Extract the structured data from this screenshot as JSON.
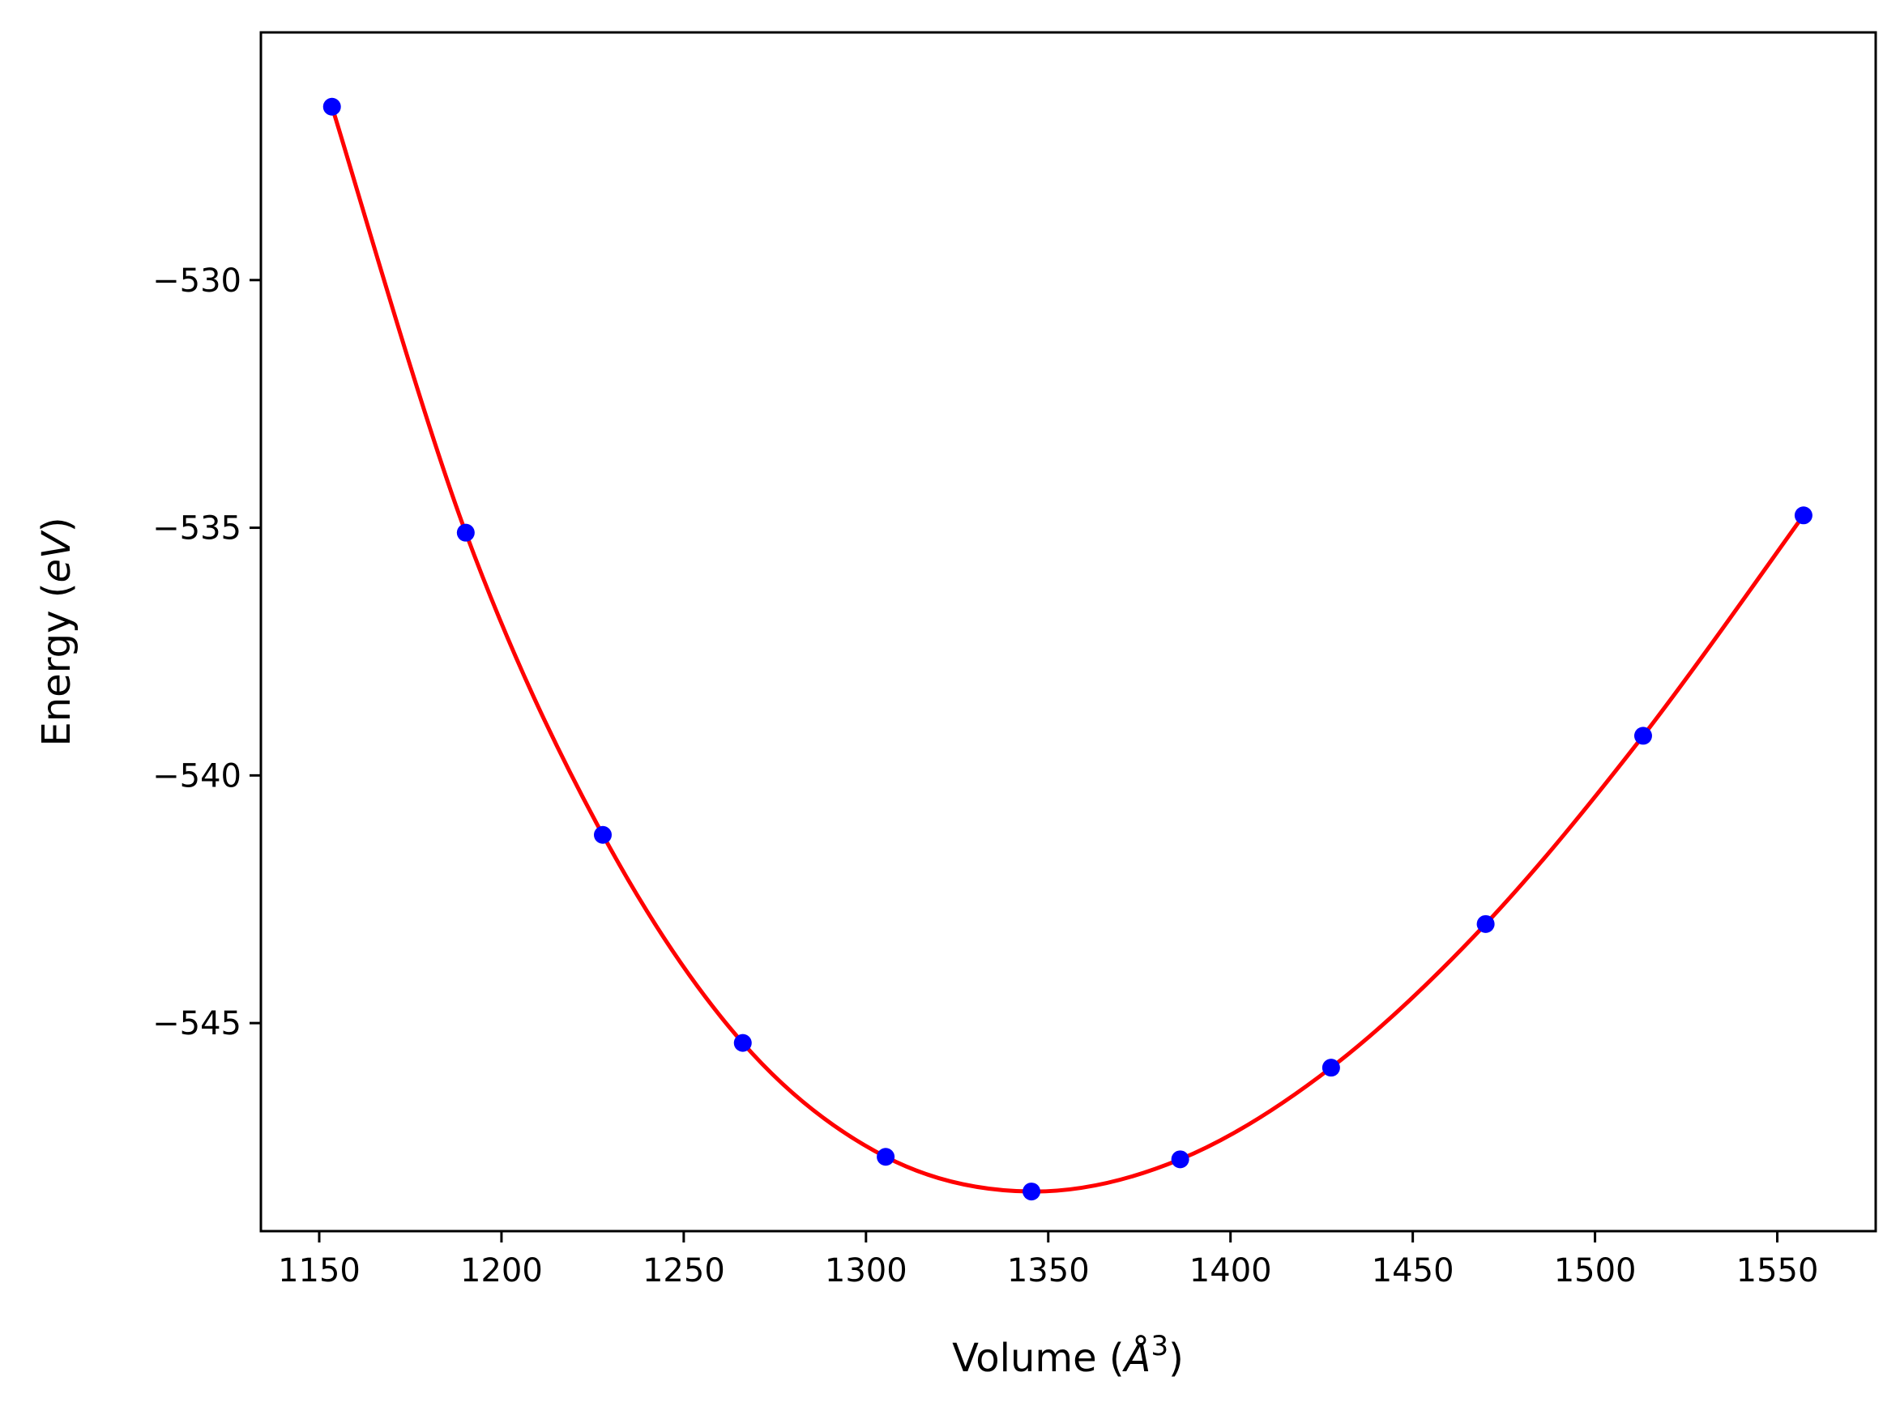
{
  "chart_data": {
    "type": "scatter",
    "title": "",
    "xlabel": "Volume",
    "xlabel_unit": "Å",
    "xlabel_unit_exponent": "3",
    "ylabel": "Energy",
    "ylabel_unit": "eV",
    "xlim": [
      1134,
      1577
    ],
    "ylim": [
      -549.2,
      -525.0
    ],
    "x_ticks": [
      1150,
      1200,
      1250,
      1300,
      1350,
      1400,
      1450,
      1500,
      1550
    ],
    "x_tick_labels": [
      "1150",
      "1200",
      "1250",
      "1300",
      "1350",
      "1400",
      "1450",
      "1500",
      "1550"
    ],
    "y_ticks": [
      -530,
      -535,
      -540,
      -545
    ],
    "y_tick_labels": [
      "−530",
      "−535",
      "−540",
      "−545"
    ],
    "grid": false,
    "legend": "none",
    "series": [
      {
        "kind": "points",
        "color": "#0000ff",
        "x": [
          1153.5,
          1190.2,
          1227.8,
          1266.2,
          1305.4,
          1345.4,
          1386.2,
          1427.6,
          1470.0,
          1513.2,
          1557.2
        ],
        "y": [
          -526.5,
          -535.1,
          -541.2,
          -545.4,
          -547.7,
          -548.4,
          -547.75,
          -545.9,
          -543.0,
          -539.2,
          -534.75
        ]
      },
      {
        "kind": "fit-curve",
        "color": "#ff0000",
        "x": [
          1153.5,
          1190.2,
          1227.8,
          1266.2,
          1305.4,
          1345.4,
          1386.2,
          1427.6,
          1470.0,
          1513.2,
          1557.2
        ],
        "y": [
          -526.5,
          -535.1,
          -541.2,
          -545.4,
          -547.7,
          -548.4,
          -547.75,
          -545.9,
          -543.0,
          -539.2,
          -534.75
        ]
      }
    ]
  }
}
